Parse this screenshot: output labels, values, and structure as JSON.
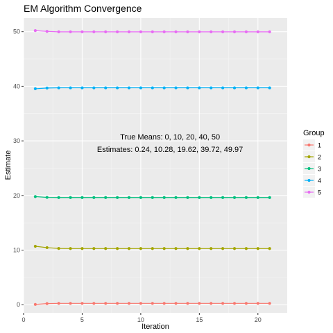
{
  "chart_data": {
    "type": "line",
    "title": "EM Algorithm Convergence",
    "xlabel": "Iteration",
    "ylabel": "Estimate",
    "xlim": [
      0,
      22.5
    ],
    "ylim": [
      -1.5,
      52.5
    ],
    "x_ticks": [
      0,
      5,
      10,
      15,
      20
    ],
    "y_ticks": [
      0,
      10,
      20,
      30,
      40,
      50
    ],
    "grid": true,
    "legend_title": "Group",
    "legend_position": "right",
    "annotation_lines": [
      "True Means: 0, 10, 20, 40, 50",
      "Estimates: 0.24, 10.28, 19.62, 39.72, 49.97"
    ],
    "annotation_anchor": {
      "x": 12.5,
      "y": 29.6
    },
    "x": [
      1,
      2,
      3,
      4,
      5,
      6,
      7,
      8,
      9,
      10,
      11,
      12,
      13,
      14,
      15,
      16,
      17,
      18,
      19,
      20,
      21
    ],
    "series": [
      {
        "name": "1",
        "color": "#F8766D",
        "values": [
          0.05,
          0.2,
          0.24,
          0.24,
          0.24,
          0.24,
          0.24,
          0.24,
          0.24,
          0.24,
          0.24,
          0.24,
          0.24,
          0.24,
          0.24,
          0.24,
          0.24,
          0.24,
          0.24,
          0.24,
          0.24
        ]
      },
      {
        "name": "2",
        "color": "#A3A500",
        "values": [
          10.7,
          10.45,
          10.3,
          10.28,
          10.28,
          10.28,
          10.28,
          10.28,
          10.28,
          10.28,
          10.28,
          10.28,
          10.28,
          10.28,
          10.28,
          10.28,
          10.28,
          10.28,
          10.28,
          10.28,
          10.28
        ]
      },
      {
        "name": "3",
        "color": "#00BF7D",
        "values": [
          19.8,
          19.65,
          19.62,
          19.62,
          19.62,
          19.62,
          19.62,
          19.62,
          19.62,
          19.62,
          19.62,
          19.62,
          19.62,
          19.62,
          19.62,
          19.62,
          19.62,
          19.62,
          19.62,
          19.62,
          19.62
        ]
      },
      {
        "name": "4",
        "color": "#00B0F6",
        "values": [
          39.55,
          39.68,
          39.72,
          39.72,
          39.72,
          39.72,
          39.72,
          39.72,
          39.72,
          39.72,
          39.72,
          39.72,
          39.72,
          39.72,
          39.72,
          39.72,
          39.72,
          39.72,
          39.72,
          39.72,
          39.72
        ]
      },
      {
        "name": "5",
        "color": "#E76BF3",
        "values": [
          50.2,
          50.05,
          49.97,
          49.97,
          49.97,
          49.97,
          49.97,
          49.97,
          49.97,
          49.97,
          49.97,
          49.97,
          49.97,
          49.97,
          49.97,
          49.97,
          49.97,
          49.97,
          49.97,
          49.97,
          49.97
        ]
      }
    ]
  }
}
